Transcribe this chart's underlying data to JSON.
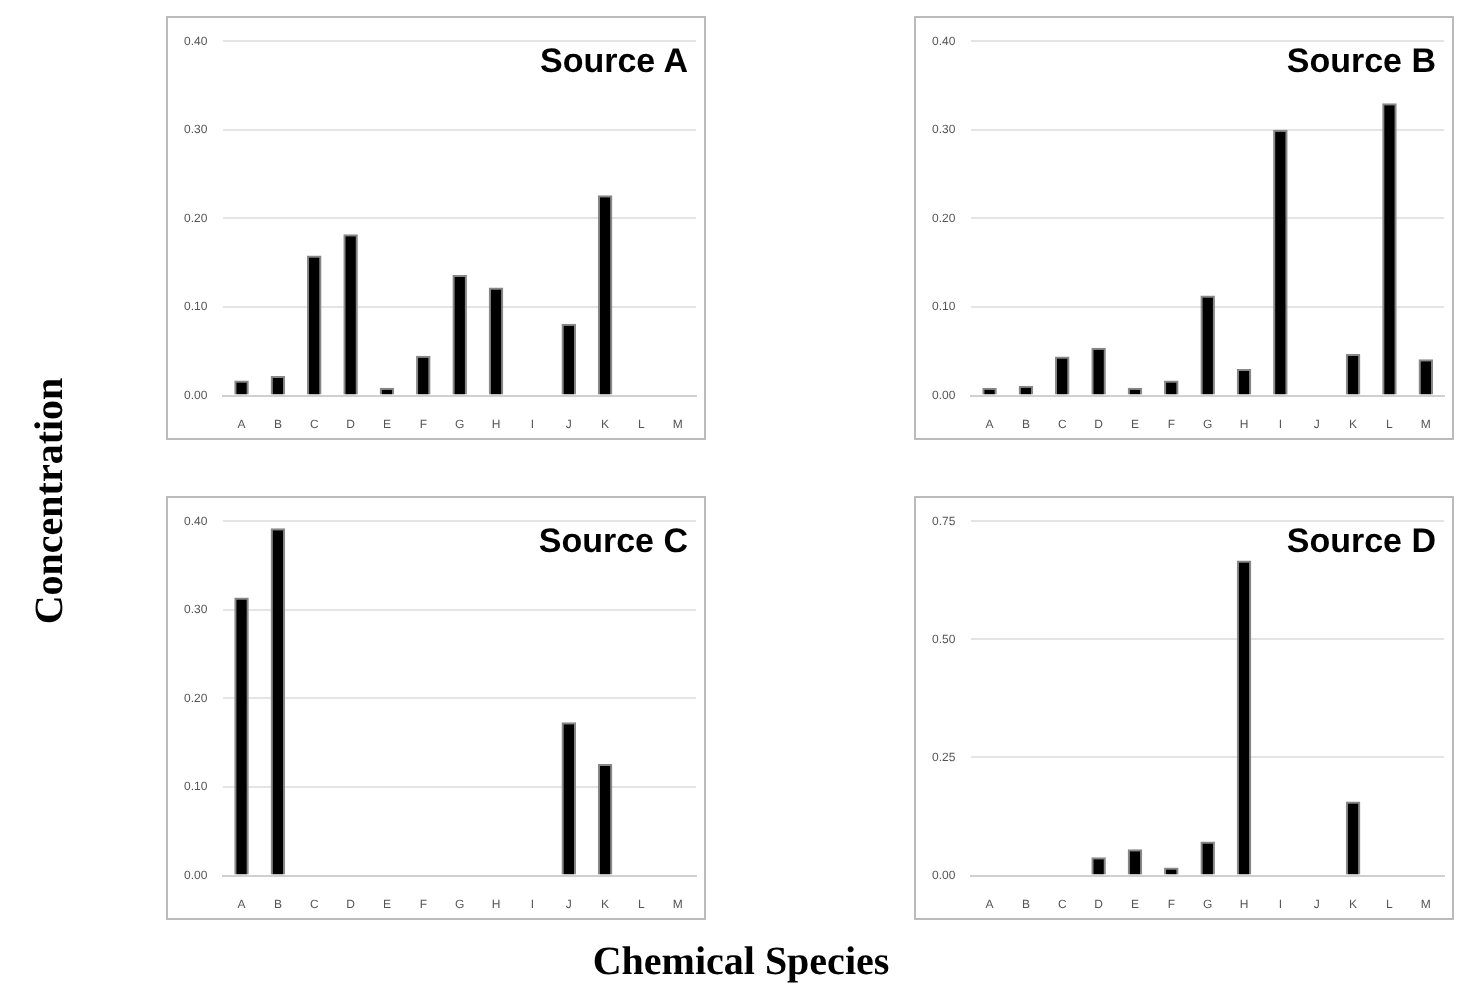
{
  "chart_data": [
    {
      "type": "bar",
      "title": "Source A",
      "ylabel": "Concentration",
      "categories": [
        "A",
        "B",
        "C",
        "D",
        "E",
        "F",
        "G",
        "H",
        "I",
        "J",
        "K",
        "L",
        "M"
      ],
      "values": [
        0.017,
        0.022,
        0.158,
        0.182,
        0.009,
        0.045,
        0.136,
        0.122,
        0,
        0.081,
        0.226,
        0,
        0
      ],
      "color": "#000000",
      "ylim": [
        0,
        0.4
      ],
      "yticks": [
        {
          "value": 0,
          "label": "0.00"
        },
        {
          "value": 0.1,
          "label": "0.10"
        },
        {
          "value": 0.2,
          "label": "0.20"
        },
        {
          "value": 0.3,
          "label": "0.30"
        },
        {
          "value": 0.4,
          "label": "0.40"
        }
      ],
      "grid": "y",
      "legend": false
    },
    {
      "type": "bar",
      "title": "Source B",
      "categories": [
        "A",
        "B",
        "C",
        "D",
        "E",
        "F",
        "G",
        "H",
        "I",
        "J",
        "K",
        "L",
        "M"
      ],
      "values": [
        0.009,
        0.011,
        0.044,
        0.054,
        0.009,
        0.017,
        0.113,
        0.03,
        0.3,
        0,
        0.047,
        0.33,
        0.041
      ],
      "color": "#000000",
      "ylim": [
        0,
        0.4
      ],
      "yticks": [
        {
          "value": 0,
          "label": "0.00"
        },
        {
          "value": 0.1,
          "label": "0.10"
        },
        {
          "value": 0.2,
          "label": "0.20"
        },
        {
          "value": 0.3,
          "label": "0.30"
        },
        {
          "value": 0.4,
          "label": "0.40"
        }
      ],
      "grid": "y",
      "legend": false
    },
    {
      "type": "bar",
      "title": "Source C",
      "xlabel": "Chemical Species",
      "categories": [
        "A",
        "B",
        "C",
        "D",
        "E",
        "F",
        "G",
        "H",
        "I",
        "J",
        "K",
        "L",
        "M"
      ],
      "values": [
        0.314,
        0.392,
        0,
        0,
        0,
        0,
        0,
        0,
        0,
        0.173,
        0.126,
        0,
        0
      ],
      "color": "#000000",
      "ylim": [
        0,
        0.4
      ],
      "yticks": [
        {
          "value": 0,
          "label": "0.00"
        },
        {
          "value": 0.1,
          "label": "0.10"
        },
        {
          "value": 0.2,
          "label": "0.20"
        },
        {
          "value": 0.3,
          "label": "0.30"
        },
        {
          "value": 0.4,
          "label": "0.40"
        }
      ],
      "grid": "y",
      "legend": false
    },
    {
      "type": "bar",
      "title": "Source D",
      "categories": [
        "A",
        "B",
        "C",
        "D",
        "E",
        "F",
        "G",
        "H",
        "I",
        "J",
        "K",
        "L",
        "M"
      ],
      "values": [
        0,
        0,
        0,
        0.039,
        0.056,
        0.017,
        0.072,
        0.667,
        0,
        0,
        0.157,
        0,
        0
      ],
      "color": "#000000",
      "ylim": [
        0,
        0.75
      ],
      "yticks": [
        {
          "value": 0,
          "label": "0.00"
        },
        {
          "value": 0.25,
          "label": "0.25"
        },
        {
          "value": 0.5,
          "label": "0.50"
        },
        {
          "value": 0.75,
          "label": "0.75"
        }
      ],
      "grid": "y",
      "legend": false
    }
  ]
}
